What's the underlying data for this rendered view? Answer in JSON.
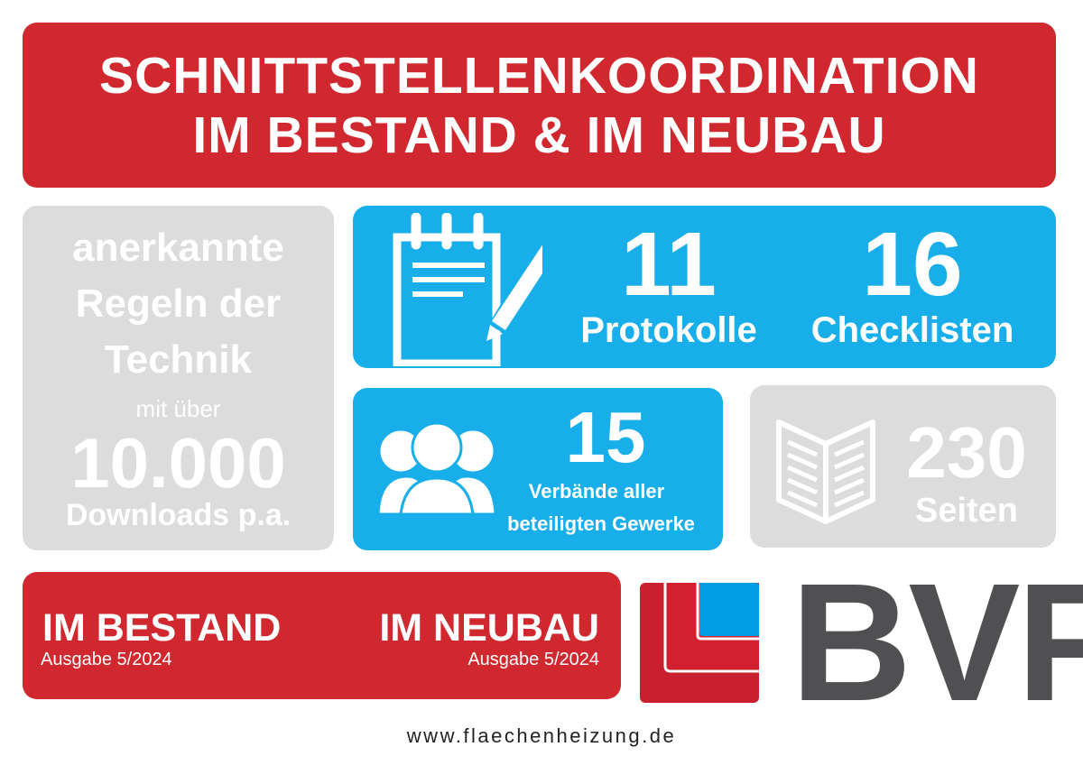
{
  "header": {
    "line1": "SCHNITTSTELLENKOORDINATION",
    "line2": "IM BESTAND & IM NEUBAU"
  },
  "left_panel": {
    "line1": "anerkannte",
    "line2": "Regeln der",
    "line3": "Technik",
    "line4": "mit über",
    "number": "10.000",
    "line5": "Downloads p.a."
  },
  "stats": {
    "protokolle": {
      "value": "11",
      "label": "Protokolle",
      "icon": "notepad-pencil-icon"
    },
    "checklisten": {
      "value": "16",
      "label": "Checklisten"
    },
    "verbaende": {
      "value": "15",
      "label1": "Verbände aller",
      "label2": "beteiligten Gewerke",
      "icon": "group-people-icon"
    },
    "seiten": {
      "value": "230",
      "label": "Seiten",
      "icon": "open-book-icon"
    }
  },
  "editions": {
    "bestand": {
      "title": "IM BESTAND",
      "sub": "Ausgabe 5/2024"
    },
    "neubau": {
      "title": "IM NEUBAU",
      "sub": "Ausgabe 5/2024"
    }
  },
  "logo": {
    "text": "BVF"
  },
  "footer": {
    "url": "www.flaechenheizung.de"
  },
  "colors": {
    "red": "#d0282e",
    "blue": "#17aeea",
    "gray": "#dcdcdc",
    "logo_text": "#504f52",
    "logo_blue": "#009fe3"
  }
}
